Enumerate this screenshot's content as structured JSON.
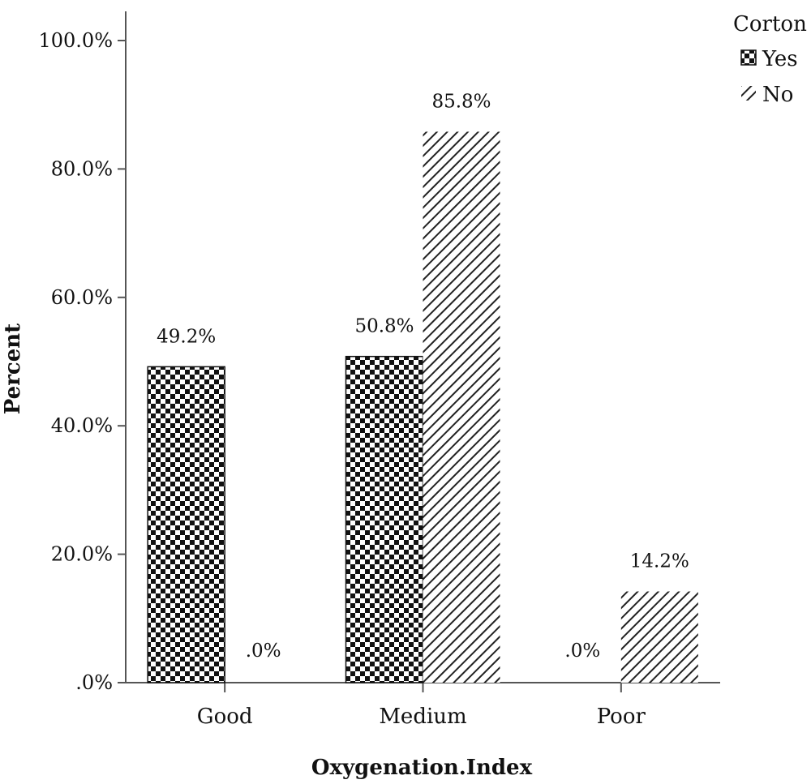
{
  "chart_data": {
    "type": "bar",
    "title": "",
    "xlabel": "Oxygenation.Index",
    "ylabel": "Percent",
    "categories": [
      "Good",
      "Medium",
      "Poor"
    ],
    "series": [
      {
        "name": "Yes",
        "values": [
          49.2,
          50.8,
          0.0
        ],
        "labels": [
          "49.2%",
          "50.8%",
          ".0%"
        ],
        "pattern": "checkerboard"
      },
      {
        "name": "No",
        "values": [
          0.0,
          85.8,
          14.2
        ],
        "labels": [
          ".0%",
          "85.8%",
          "14.2%"
        ],
        "pattern": "diagonal-hatch"
      }
    ],
    "ylim": [
      0,
      100
    ],
    "yticks": [
      0,
      20,
      40,
      60,
      80,
      100
    ],
    "ytick_labels": [
      ".0%",
      "20.0%",
      "40.0%",
      "60.0%",
      "80.0%",
      "100.0%"
    ],
    "legend_title": "Corton",
    "legend_position": "top-right",
    "grid": false,
    "colors": {
      "ink": "#111111",
      "background": "#ffffff",
      "axis": "#555555"
    }
  }
}
